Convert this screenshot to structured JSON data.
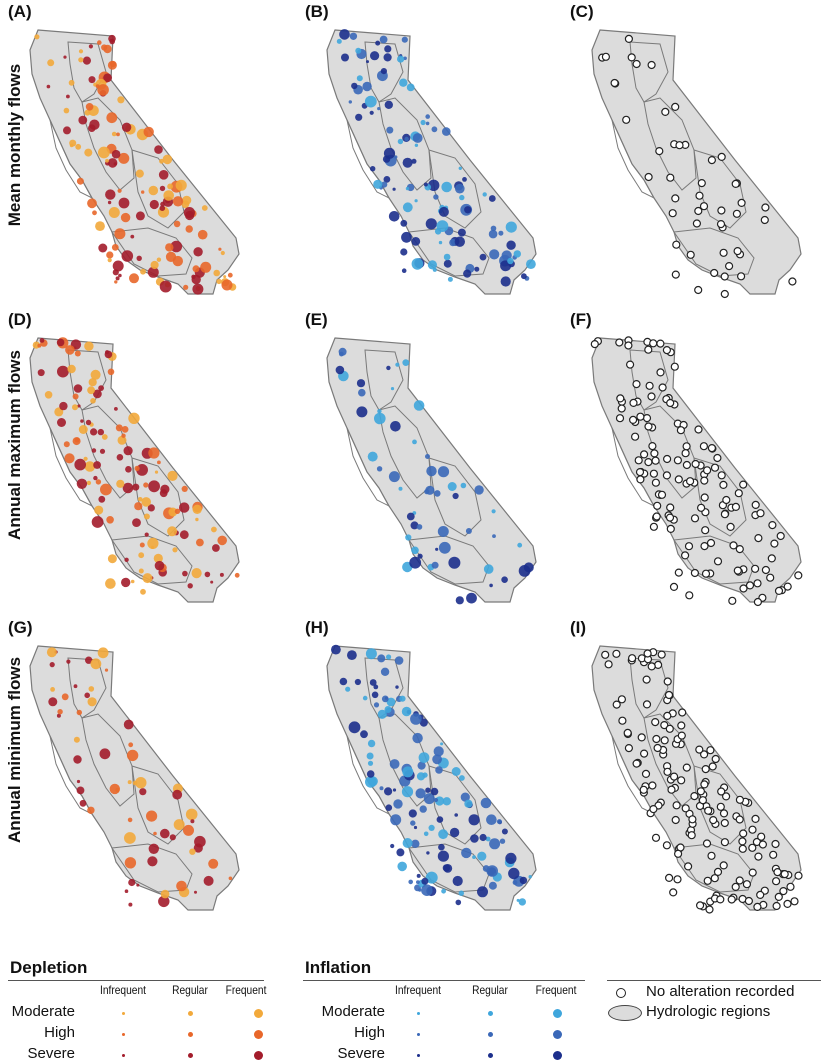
{
  "rows": [
    {
      "label": "Mean monthly flows"
    },
    {
      "label": "Annual maximum flows"
    },
    {
      "label": "Annual minimum flows"
    }
  ],
  "panels": [
    {
      "id": "(A)",
      "kind": "depletion",
      "density": 0.85
    },
    {
      "id": "(B)",
      "kind": "inflation",
      "density": 0.75
    },
    {
      "id": "(C)",
      "kind": "none",
      "density": 0.3
    },
    {
      "id": "(D)",
      "kind": "depletion",
      "density": 0.8
    },
    {
      "id": "(E)",
      "kind": "inflation",
      "density": 0.35
    },
    {
      "id": "(F)",
      "kind": "none",
      "density": 0.85
    },
    {
      "id": "(G)",
      "kind": "depletion",
      "density": 0.4
    },
    {
      "id": "(H)",
      "kind": "inflation",
      "density": 0.85
    },
    {
      "id": "(I)",
      "kind": "none",
      "density": 1.0
    }
  ],
  "legend": {
    "depletion": {
      "title": "Depletion",
      "columns": [
        "Infrequent",
        "Regular",
        "Frequent"
      ],
      "rows": [
        "Moderate",
        "High",
        "Severe"
      ]
    },
    "inflation": {
      "title": "Inflation",
      "columns": [
        "Infrequent",
        "Regular",
        "Frequent"
      ],
      "rows": [
        "Moderate",
        "High",
        "Severe"
      ]
    },
    "extra": {
      "no_alteration": "No alteration recorded",
      "hydrologic_regions": "Hydrologic regions"
    }
  },
  "colors": {
    "state_fill": "#dcdcdc",
    "border": "#7a7a7a",
    "depletion_moderate": "#f2a93b",
    "depletion_high": "#e8672a",
    "depletion_severe": "#a31c2b",
    "inflation_moderate": "#3fa6dc",
    "inflation_high": "#3a68b8",
    "inflation_severe": "#1c2f8c"
  }
}
